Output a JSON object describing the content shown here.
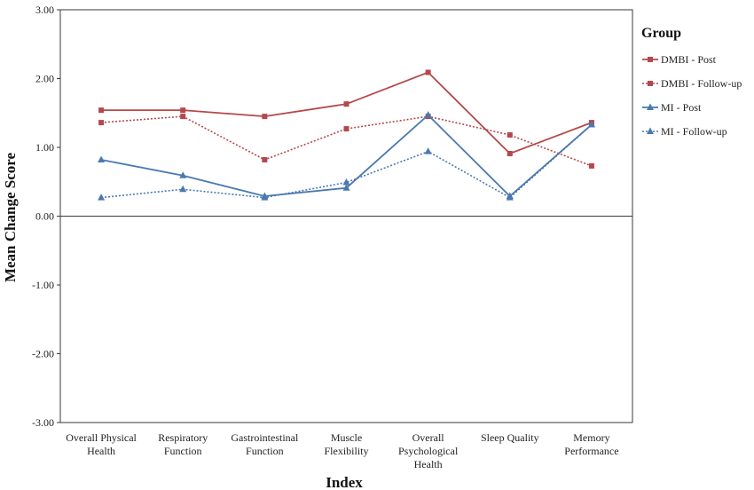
{
  "chart_data": {
    "type": "line",
    "title": "",
    "xlabel": "Index",
    "ylabel": "Mean Change Score",
    "ylim": [
      -3,
      3
    ],
    "yticks": [
      "3.00",
      "2.00",
      "1.00",
      "0.00",
      "-1.00",
      "-2.00",
      "-3.00"
    ],
    "categories": [
      [
        "Overall Physical",
        "Health"
      ],
      [
        "Respiratory",
        "Function"
      ],
      [
        "Gastrointestinal",
        "Function"
      ],
      [
        "Muscle",
        "Flexibility"
      ],
      [
        "Overall",
        "Psychological",
        "Health"
      ],
      [
        "Sleep Quality"
      ],
      [
        "Memory",
        "Performance"
      ]
    ],
    "legend_title": "Group",
    "series": [
      {
        "name": "DMBI - Post",
        "color": "#b5484a",
        "dash": "solid",
        "marker": "square",
        "values": [
          1.54,
          1.54,
          1.45,
          1.63,
          2.09,
          0.91,
          1.36
        ]
      },
      {
        "name": "DMBI - Follow-up",
        "color": "#b5484a",
        "dash": "dotted",
        "marker": "square",
        "values": [
          1.36,
          1.45,
          0.82,
          1.27,
          1.45,
          1.18,
          0.73
        ]
      },
      {
        "name": "MI - Post",
        "color": "#4a78b0",
        "dash": "solid",
        "marker": "triangle",
        "values": [
          0.82,
          0.59,
          0.29,
          0.41,
          1.47,
          0.29,
          1.33
        ]
      },
      {
        "name": "MI - Follow-up",
        "color": "#4a78b0",
        "dash": "dotted",
        "marker": "triangle",
        "values": [
          0.27,
          0.39,
          0.27,
          0.49,
          0.94,
          0.27,
          1.33
        ]
      }
    ]
  }
}
